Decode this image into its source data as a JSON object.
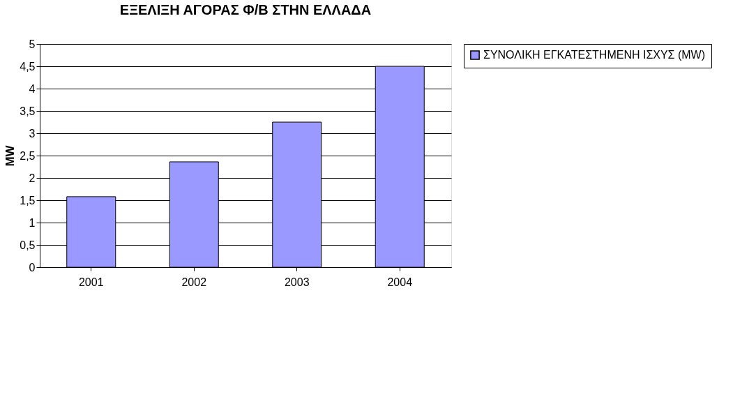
{
  "chart_data": {
    "type": "bar",
    "title": "ΕΞΕΛΙΞΗ ΑΓΟΡΑΣ Φ/Β ΣΤΗΝ ΕΛΛΑΔΑ",
    "ylabel": "MW",
    "categories": [
      "2001",
      "2002",
      "2003",
      "2004"
    ],
    "series": [
      {
        "name": "ΣΥΝΟΛΙΚΗ ΕΓΚΑΤΕΣΤΗΜΕΝΗ ΙΣΧΥΣ (MW)",
        "color": "#9999ff",
        "values": [
          1.58,
          2.36,
          3.25,
          4.5
        ]
      }
    ],
    "ylim": [
      0,
      5
    ],
    "yticks": [
      0,
      {
        "value": 0.5,
        "label": "0,5"
      },
      1,
      {
        "value": 1.5,
        "label": "1,5"
      },
      2,
      {
        "value": 2.5,
        "label": "2,5"
      },
      3,
      {
        "value": 3.5,
        "label": "3,5"
      },
      4,
      {
        "value": 4.5,
        "label": "4,5"
      },
      5
    ],
    "grid": "y",
    "legend": "right"
  }
}
